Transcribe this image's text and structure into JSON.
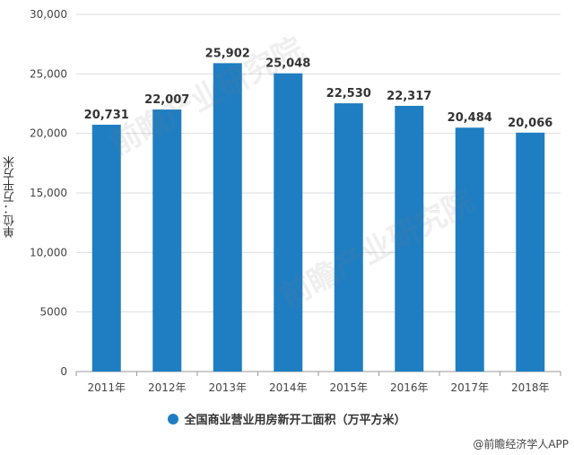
{
  "chart_data": {
    "type": "bar",
    "categories": [
      "2011年",
      "2012年",
      "2013年",
      "2014年",
      "2015年",
      "2016年",
      "2017年",
      "2018年"
    ],
    "values": [
      20731,
      22007,
      25902,
      25048,
      22530,
      22317,
      20484,
      20066
    ],
    "value_labels": [
      "20,731",
      "22,007",
      "25,902",
      "25,048",
      "22,530",
      "22,317",
      "20,484",
      "20,066"
    ],
    "y_ticks": [
      0,
      5000,
      10000,
      15000,
      20000,
      25000,
      30000
    ],
    "y_tick_labels": [
      "0",
      "5000",
      "10,000",
      "15,000",
      "20,000",
      "25,000",
      "30,000"
    ],
    "ylabel": "单位：万平方米",
    "ylim": [
      0,
      30000
    ],
    "grid": true,
    "legend": {
      "position": "bottom",
      "label": "全国商业营业用房新开工面积（万平方米）"
    },
    "bar_color": "#1f7ec2"
  },
  "footer": {
    "source": "@前瞻经济学人APP"
  },
  "watermark": {
    "text": "前瞻产业研究院"
  }
}
